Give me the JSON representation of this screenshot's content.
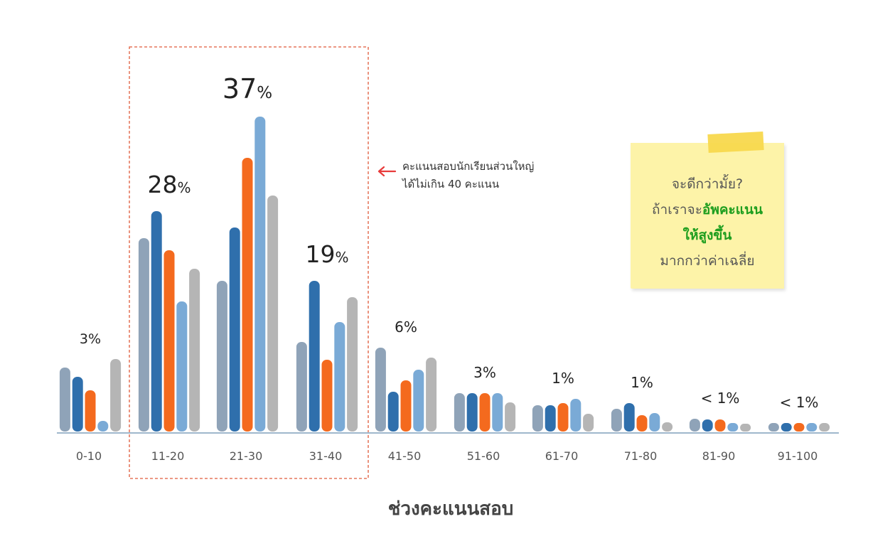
{
  "chart_data": {
    "type": "bar",
    "xlabel": "ช่วงคะแนนสอบ",
    "categories": [
      "0-10",
      "11-20",
      "21-30",
      "31-40",
      "41-50",
      "51-60",
      "61-70",
      "71-80",
      "81-90",
      "91-100"
    ],
    "group_labels": [
      "3%",
      "28%",
      "37%",
      "19%",
      "6%",
      "3%",
      "1%",
      "1%",
      "< 1%",
      "< 1%"
    ],
    "series": [
      {
        "values": [
          90,
          272,
          212,
          126,
          118,
          54,
          37,
          32,
          18,
          12
        ]
      },
      {
        "values": [
          77,
          310,
          287,
          212,
          56,
          54,
          37,
          40,
          17,
          12
        ]
      },
      {
        "values": [
          58,
          255,
          385,
          101,
          72,
          54,
          40,
          23,
          17,
          12
        ]
      },
      {
        "values": [
          15,
          183,
          443,
          154,
          87,
          54,
          46,
          26,
          12,
          12
        ]
      },
      {
        "values": [
          102,
          229,
          332,
          189,
          104,
          41,
          25,
          13,
          11,
          12
        ]
      }
    ],
    "colors": [
      "#8fa3b8",
      "#2f6fac",
      "#f46a1e",
      "#7aaad6",
      "#b5b5b5"
    ],
    "ylim": [
      0,
      450
    ],
    "highlight_range": [
      "11-20",
      "31-40"
    ]
  },
  "annotation": {
    "line1": "คะแนนสอบนักเรียนส่วนใหญ่",
    "line2": "ได้ไม่เกิน 40 คะแนน",
    "arrow_color": "#e83b3b"
  },
  "sticky_note": {
    "line1": "จะดีกว่ามั้ย?",
    "line2_prefix": "ถ้าเราจะ",
    "line2_highlight": "อัพคะแนน",
    "line3_highlight": "ให้สูงขึ้น",
    "line4": "มากกว่าค่าเฉลี่ย",
    "highlight_color": "#1f9e1f"
  }
}
